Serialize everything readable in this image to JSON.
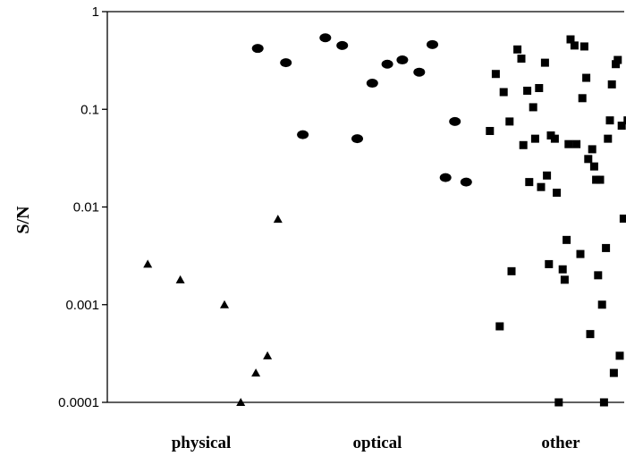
{
  "chart_data": {
    "type": "scatter",
    "title": "",
    "xlabel": "",
    "ylabel": "S/N",
    "y_scale": "log",
    "ylim": [
      0.0001,
      1
    ],
    "y_ticks": [
      {
        "value": 1,
        "label": "1"
      },
      {
        "value": 0.1,
        "label": "0.1"
      },
      {
        "value": 0.01,
        "label": "0.01"
      },
      {
        "value": 0.001,
        "label": "0.001"
      },
      {
        "value": 0.0001,
        "label": "0.0001"
      }
    ],
    "categories": [
      "physical",
      "optical",
      "other"
    ],
    "grid": false,
    "legend": "none",
    "series": [
      {
        "category": "physical",
        "marker": "triangle",
        "points": [
          {
            "x": 0.2,
            "y": 0.0026
          },
          {
            "x": 0.48,
            "y": 0.0018
          },
          {
            "x": 0.86,
            "y": 0.001
          },
          {
            "x": 1.0,
            "y": 0.0001
          },
          {
            "x": 1.13,
            "y": 0.0002
          },
          {
            "x": 1.23,
            "y": 0.0003
          },
          {
            "x": 1.32,
            "y": 0.0075
          }
        ]
      },
      {
        "category": "optical",
        "marker": "circle",
        "points": [
          {
            "x": 0.02,
            "y": 0.42
          },
          {
            "x": 0.17,
            "y": 0.3
          },
          {
            "x": 0.26,
            "y": 0.055
          },
          {
            "x": 0.38,
            "y": 0.54
          },
          {
            "x": 0.47,
            "y": 0.45
          },
          {
            "x": 0.55,
            "y": 0.05
          },
          {
            "x": 0.63,
            "y": 0.185
          },
          {
            "x": 0.71,
            "y": 0.29
          },
          {
            "x": 0.79,
            "y": 0.32
          },
          {
            "x": 0.88,
            "y": 0.24
          },
          {
            "x": 0.95,
            "y": 0.46
          },
          {
            "x": 1.02,
            "y": 0.02
          },
          {
            "x": 1.07,
            "y": 0.075
          },
          {
            "x": 1.13,
            "y": 0.018
          }
        ]
      },
      {
        "category": "other",
        "marker": "square",
        "points": [
          {
            "x": -0.36,
            "y": 0.06
          },
          {
            "x": -0.33,
            "y": 0.23
          },
          {
            "x": -0.31,
            "y": 0.0006
          },
          {
            "x": -0.29,
            "y": 0.15
          },
          {
            "x": -0.26,
            "y": 0.075
          },
          {
            "x": -0.25,
            "y": 0.0022
          },
          {
            "x": -0.22,
            "y": 0.41
          },
          {
            "x": -0.2,
            "y": 0.33
          },
          {
            "x": -0.19,
            "y": 0.043
          },
          {
            "x": -0.17,
            "y": 0.155
          },
          {
            "x": -0.16,
            "y": 0.018
          },
          {
            "x": -0.14,
            "y": 0.105
          },
          {
            "x": -0.13,
            "y": 0.05
          },
          {
            "x": -0.11,
            "y": 0.165
          },
          {
            "x": -0.1,
            "y": 0.016
          },
          {
            "x": -0.08,
            "y": 0.3
          },
          {
            "x": -0.07,
            "y": 0.021
          },
          {
            "x": -0.06,
            "y": 0.0026
          },
          {
            "x": -0.05,
            "y": 0.054
          },
          {
            "x": -0.03,
            "y": 0.05
          },
          {
            "x": -0.02,
            "y": 0.014
          },
          {
            "x": -0.01,
            "y": 0.0001
          },
          {
            "x": 0.01,
            "y": 0.0023
          },
          {
            "x": 0.02,
            "y": 0.0018
          },
          {
            "x": 0.03,
            "y": 0.0046
          },
          {
            "x": 0.04,
            "y": 0.044
          },
          {
            "x": 0.05,
            "y": 0.52
          },
          {
            "x": 0.07,
            "y": 0.45
          },
          {
            "x": 0.08,
            "y": 0.044
          },
          {
            "x": 0.1,
            "y": 0.0033
          },
          {
            "x": 0.11,
            "y": 0.13
          },
          {
            "x": 0.12,
            "y": 0.44
          },
          {
            "x": 0.13,
            "y": 0.21
          },
          {
            "x": 0.14,
            "y": 0.031
          },
          {
            "x": 0.15,
            "y": 0.0005
          },
          {
            "x": 0.16,
            "y": 0.039
          },
          {
            "x": 0.17,
            "y": 0.026
          },
          {
            "x": 0.18,
            "y": 0.019
          },
          {
            "x": 0.19,
            "y": 0.002
          },
          {
            "x": 0.2,
            "y": 0.019
          },
          {
            "x": 0.21,
            "y": 0.001
          },
          {
            "x": 0.22,
            "y": 0.0001
          },
          {
            "x": 0.23,
            "y": 0.0038
          },
          {
            "x": 0.24,
            "y": 0.05
          },
          {
            "x": 0.25,
            "y": 0.077
          },
          {
            "x": 0.26,
            "y": 0.18
          },
          {
            "x": 0.27,
            "y": 0.0002
          },
          {
            "x": 0.28,
            "y": 0.29
          },
          {
            "x": 0.29,
            "y": 0.32
          },
          {
            "x": 0.3,
            "y": 0.0003
          },
          {
            "x": 0.31,
            "y": 0.068
          },
          {
            "x": 0.32,
            "y": 0.0076
          },
          {
            "x": 0.34,
            "y": 0.077
          }
        ]
      }
    ]
  }
}
